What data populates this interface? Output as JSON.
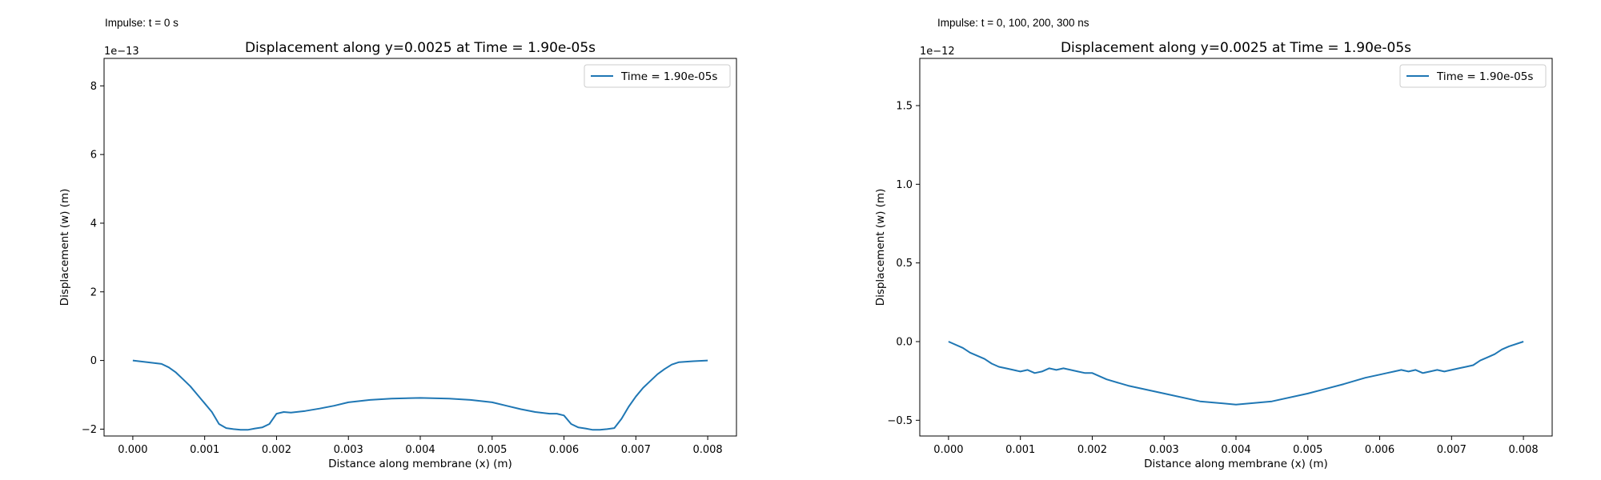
{
  "panels": [
    {
      "label": "Impulse: t = 0 s"
    },
    {
      "label": "Impulse: t = 0, 100, 200, 300 ns"
    }
  ],
  "colors": {
    "series": "#1f77b4"
  },
  "chart_data": [
    {
      "type": "line",
      "title": "Displacement along y=0.0025 at Time = 1.90e-05s",
      "xlabel": "Distance along membrane (x) (m)",
      "ylabel": "Displacement (w) (m)",
      "y_offset_text": "1e−13",
      "xlim": [
        -0.0004,
        0.0084
      ],
      "ylim": [
        -2.2,
        8.8
      ],
      "xticks": [
        0.0,
        0.001,
        0.002,
        0.003,
        0.004,
        0.005,
        0.006,
        0.007,
        0.008
      ],
      "xtick_labels": [
        "0.000",
        "0.001",
        "0.002",
        "0.003",
        "0.004",
        "0.005",
        "0.006",
        "0.007",
        "0.008"
      ],
      "yticks": [
        -2,
        0,
        2,
        4,
        6,
        8
      ],
      "ytick_labels": [
        "−2",
        "0",
        "2",
        "4",
        "6",
        "8"
      ],
      "legend_loc": "upper right",
      "grid": false,
      "series": [
        {
          "name": "Time = 1.90e-05s",
          "x": [
            0.0,
            0.0002,
            0.0004,
            0.0005,
            0.0006,
            0.0007,
            0.0008,
            0.0009,
            0.001,
            0.0011,
            0.0012,
            0.0013,
            0.0014,
            0.0015,
            0.0016,
            0.0017,
            0.0018,
            0.0019,
            0.002,
            0.0021,
            0.0022,
            0.0024,
            0.0026,
            0.0028,
            0.003,
            0.0033,
            0.0036,
            0.004,
            0.0044,
            0.0047,
            0.005,
            0.0052,
            0.0054,
            0.0056,
            0.0058,
            0.0059,
            0.006,
            0.0061,
            0.0062,
            0.0063,
            0.0064,
            0.0065,
            0.0066,
            0.0067,
            0.0068,
            0.0069,
            0.007,
            0.0071,
            0.0072,
            0.0073,
            0.0074,
            0.0075,
            0.0076,
            0.0078,
            0.008
          ],
          "y": [
            0.0,
            -0.05,
            -0.1,
            -0.2,
            -0.35,
            -0.55,
            -0.75,
            -1.0,
            -1.25,
            -1.5,
            -1.85,
            -1.97,
            -2.0,
            -2.02,
            -2.02,
            -1.98,
            -1.95,
            -1.85,
            -1.55,
            -1.5,
            -1.52,
            -1.47,
            -1.4,
            -1.32,
            -1.22,
            -1.15,
            -1.11,
            -1.09,
            -1.11,
            -1.15,
            -1.22,
            -1.32,
            -1.42,
            -1.5,
            -1.55,
            -1.55,
            -1.6,
            -1.85,
            -1.95,
            -1.98,
            -2.02,
            -2.02,
            -2.0,
            -1.97,
            -1.7,
            -1.35,
            -1.05,
            -0.8,
            -0.6,
            -0.4,
            -0.25,
            -0.12,
            -0.05,
            -0.02,
            0.0
          ]
        }
      ]
    },
    {
      "type": "line",
      "title": "Displacement along y=0.0025 at Time = 1.90e-05s",
      "xlabel": "Distance along membrane (x) (m)",
      "ylabel": "Displacement (w) (m)",
      "y_offset_text": "1e−12",
      "xlim": [
        -0.0004,
        0.0084
      ],
      "ylim": [
        -0.6,
        1.8
      ],
      "xticks": [
        0.0,
        0.001,
        0.002,
        0.003,
        0.004,
        0.005,
        0.006,
        0.007,
        0.008
      ],
      "xtick_labels": [
        "0.000",
        "0.001",
        "0.002",
        "0.003",
        "0.004",
        "0.005",
        "0.006",
        "0.007",
        "0.008"
      ],
      "yticks": [
        -0.5,
        0.0,
        0.5,
        1.0,
        1.5
      ],
      "ytick_labels": [
        "−0.5",
        "0.0",
        "0.5",
        "1.0",
        "1.5"
      ],
      "legend_loc": "upper right",
      "grid": false,
      "series": [
        {
          "name": "Time = 1.90e-05s",
          "x": [
            0.0,
            0.0002,
            0.0003,
            0.0004,
            0.0005,
            0.0006,
            0.0007,
            0.0008,
            0.0009,
            0.001,
            0.0011,
            0.0012,
            0.0013,
            0.0014,
            0.0015,
            0.0016,
            0.0017,
            0.0018,
            0.0019,
            0.002,
            0.0022,
            0.0025,
            0.003,
            0.0035,
            0.004,
            0.0045,
            0.005,
            0.0055,
            0.0058,
            0.006,
            0.0061,
            0.0062,
            0.0063,
            0.0064,
            0.0065,
            0.0066,
            0.0067,
            0.0068,
            0.0069,
            0.007,
            0.0071,
            0.0072,
            0.0073,
            0.0074,
            0.0075,
            0.0076,
            0.0077,
            0.0078,
            0.008
          ],
          "y": [
            0.0,
            -0.04,
            -0.07,
            -0.09,
            -0.11,
            -0.14,
            -0.16,
            -0.17,
            -0.18,
            -0.19,
            -0.18,
            -0.2,
            -0.19,
            -0.17,
            -0.18,
            -0.17,
            -0.18,
            -0.19,
            -0.2,
            -0.2,
            -0.24,
            -0.28,
            -0.33,
            -0.38,
            -0.4,
            -0.38,
            -0.33,
            -0.27,
            -0.23,
            -0.21,
            -0.2,
            -0.19,
            -0.18,
            -0.19,
            -0.18,
            -0.2,
            -0.19,
            -0.18,
            -0.19,
            -0.18,
            -0.17,
            -0.16,
            -0.15,
            -0.12,
            -0.1,
            -0.08,
            -0.05,
            -0.03,
            0.0
          ]
        }
      ]
    }
  ]
}
